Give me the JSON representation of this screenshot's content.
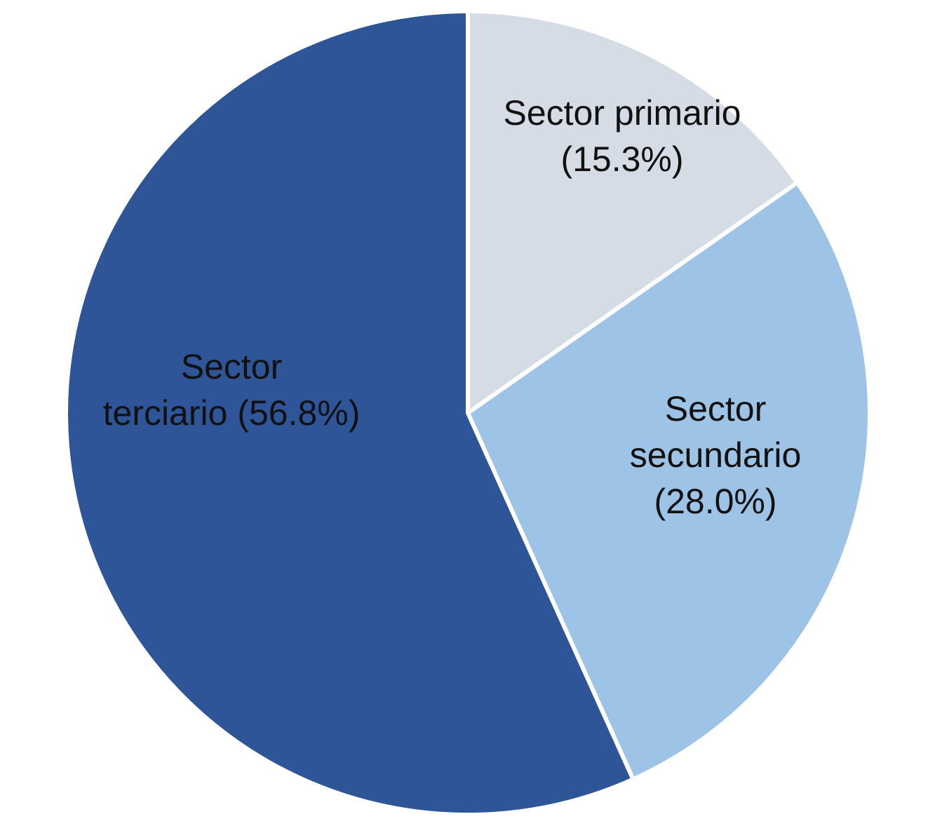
{
  "chart_data": {
    "type": "pie",
    "start": "12 o'clock",
    "direction": "clockwise",
    "slices": [
      {
        "label": "Sector primario",
        "value": 15.3,
        "value_label": "(15.3%)",
        "color": "#d5dce6",
        "label_lines": [
          "Sector primario",
          "(15.3%)"
        ]
      },
      {
        "label": "Sector secundario",
        "value": 28.0,
        "value_label": "(28.0%)",
        "color": "#9dc3e6",
        "label_lines": [
          "Sector",
          "secundario",
          "(28.0%)"
        ]
      },
      {
        "label": "Sector terciario",
        "value": 56.8,
        "value_label": "(56.8%)",
        "color": "#2e5597",
        "label_lines": [
          "Sector",
          "terciario (56.8%)"
        ]
      }
    ],
    "slice_border_color": "#ffffff",
    "legend": "none"
  }
}
